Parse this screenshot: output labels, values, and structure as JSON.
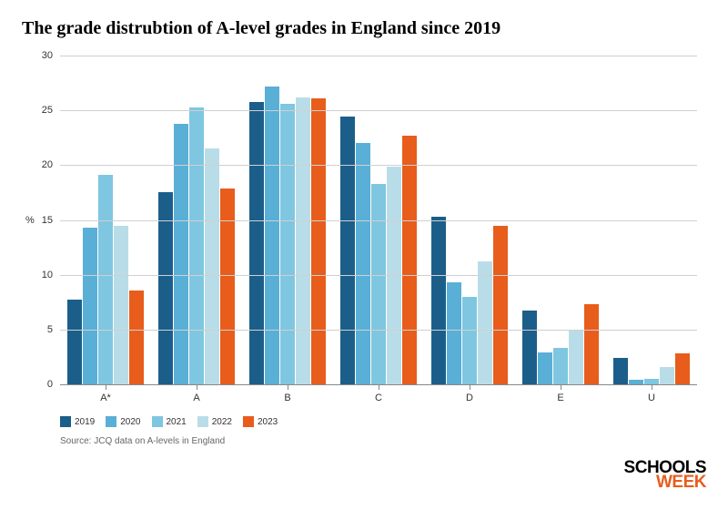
{
  "title": "The grade distrubtion of A-level grades in England since 2019",
  "title_fontsize": 20,
  "chart": {
    "type": "bar",
    "grouped": true,
    "ylabel": "%",
    "ylim": [
      0,
      30
    ],
    "ytick_step": 5,
    "yticks": [
      0,
      5,
      10,
      15,
      20,
      25,
      30
    ],
    "background_color": "#ffffff",
    "grid_color": "#d0d0d0",
    "axis_color": "#888888",
    "categories": [
      "A*",
      "A",
      "B",
      "C",
      "D",
      "E",
      "U"
    ],
    "series": [
      {
        "name": "2019",
        "color": "#1b5e8a",
        "values": [
          7.7,
          17.5,
          25.8,
          24.4,
          15.3,
          6.7,
          2.4
        ]
      },
      {
        "name": "2020",
        "color": "#5aafd6",
        "values": [
          14.3,
          23.8,
          27.2,
          22.0,
          9.3,
          2.9,
          0.4
        ]
      },
      {
        "name": "2021",
        "color": "#7fc6e0",
        "values": [
          19.1,
          25.3,
          25.6,
          18.3,
          8.0,
          3.3,
          0.5
        ]
      },
      {
        "name": "2022",
        "color": "#b9dde8",
        "values": [
          14.5,
          21.5,
          26.2,
          19.9,
          11.2,
          5.0,
          1.6
        ]
      },
      {
        "name": "2023",
        "color": "#e85d1c",
        "values": [
          8.6,
          17.9,
          26.1,
          22.7,
          14.5,
          7.3,
          2.8
        ]
      }
    ],
    "label_fontsize": 11,
    "tick_fontsize": 11
  },
  "legend": {
    "items": [
      {
        "label": "2019",
        "color": "#1b5e8a"
      },
      {
        "label": "2020",
        "color": "#5aafd6"
      },
      {
        "label": "2021",
        "color": "#7fc6e0"
      },
      {
        "label": "2022",
        "color": "#b9dde8"
      },
      {
        "label": "2023",
        "color": "#e85d1c"
      }
    ],
    "fontsize": 10
  },
  "source": "Source: JCQ data on A-levels in England",
  "logo": {
    "line1": "SCHOOLS",
    "line2": "WEEK",
    "color1": "#000000",
    "color2": "#e85d1c"
  }
}
